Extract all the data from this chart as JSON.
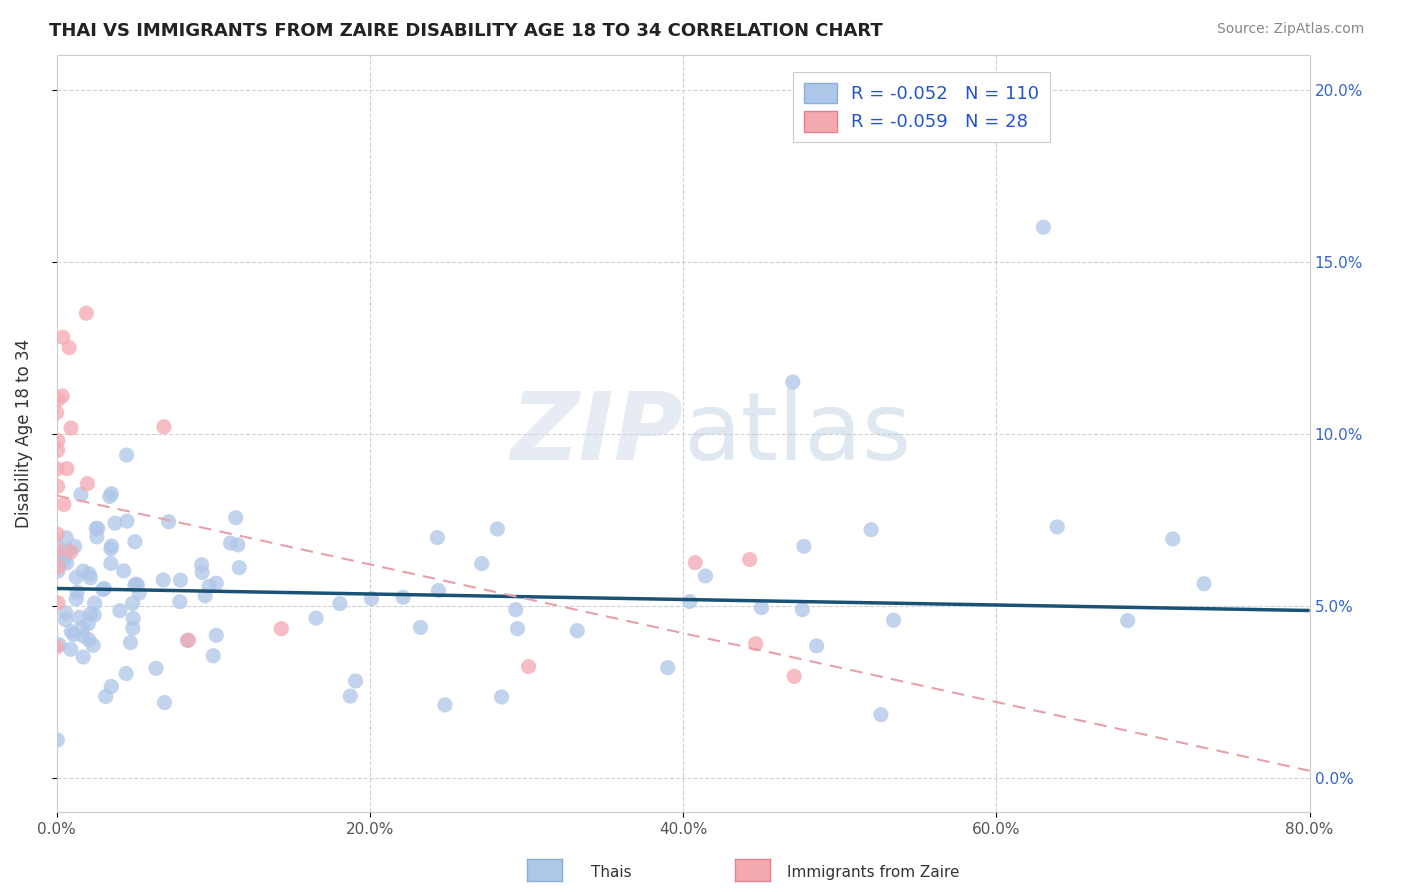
{
  "title": "THAI VS IMMIGRANTS FROM ZAIRE DISABILITY AGE 18 TO 34 CORRELATION CHART",
  "source": "Source: ZipAtlas.com",
  "ylabel": "Disability Age 18 to 34",
  "xmin": 0.0,
  "xmax": 0.8,
  "ymin": -0.01,
  "ymax": 0.21,
  "yticks": [
    0.0,
    0.05,
    0.1,
    0.15,
    0.2
  ],
  "ytick_labels": [
    "0.0%",
    "5.0%",
    "10.0%",
    "15.0%",
    "20.0%"
  ],
  "xticks": [
    0.0,
    0.2,
    0.4,
    0.6,
    0.8
  ],
  "xtick_labels": [
    "0.0%",
    "20.0%",
    "40.0%",
    "60.0%",
    "80.0%"
  ],
  "legend_r_thai": "-0.052",
  "legend_n_thai": "110",
  "legend_r_zaire": "-0.059",
  "legend_n_zaire": "28",
  "thai_color": "#aec6e8",
  "zaire_color": "#f4a9b0",
  "thai_line_color": "#1a5276",
  "zaire_line_color": "#e8a0a8",
  "watermark": "ZIPatlas",
  "background_color": "#ffffff",
  "grid_color": "#cccccc",
  "thai_line_intercept": 0.055,
  "thai_line_slope": -0.008,
  "zaire_line_intercept": 0.082,
  "zaire_line_slope": -0.1
}
